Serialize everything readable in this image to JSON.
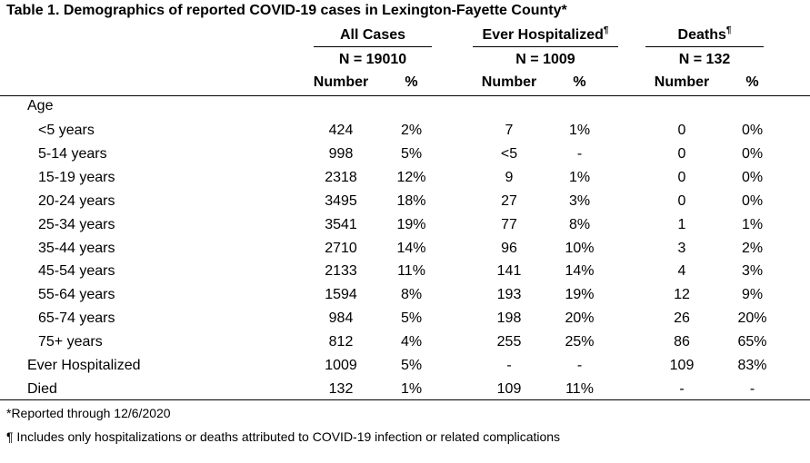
{
  "title": "Table 1. Demographics of reported COVID-19 cases in Lexington-Fayette County*",
  "groups": [
    {
      "label": "All Cases",
      "mark": "",
      "n": "N = 19010"
    },
    {
      "label": "Ever Hospitalized",
      "mark": "¶",
      "n": "N = 1009"
    },
    {
      "label": "Deaths",
      "mark": "¶",
      "n": "N = 132"
    }
  ],
  "col_headers": {
    "number": "Number",
    "percent": "%"
  },
  "section_label": "Age",
  "age_rows": [
    {
      "label": "<5 years",
      "all_n": "424",
      "all_p": "2%",
      "hosp_n": "7",
      "hosp_p": "1%",
      "death_n": "0",
      "death_p": "0%"
    },
    {
      "label": "5-14 years",
      "all_n": "998",
      "all_p": "5%",
      "hosp_n": "<5",
      "hosp_p": "-",
      "death_n": "0",
      "death_p": "0%"
    },
    {
      "label": "15-19 years",
      "all_n": "2318",
      "all_p": "12%",
      "hosp_n": "9",
      "hosp_p": "1%",
      "death_n": "0",
      "death_p": "0%"
    },
    {
      "label": "20-24 years",
      "all_n": "3495",
      "all_p": "18%",
      "hosp_n": "27",
      "hosp_p": "3%",
      "death_n": "0",
      "death_p": "0%"
    },
    {
      "label": "25-34 years",
      "all_n": "3541",
      "all_p": "19%",
      "hosp_n": "77",
      "hosp_p": "8%",
      "death_n": "1",
      "death_p": "1%"
    },
    {
      "label": "35-44 years",
      "all_n": "2710",
      "all_p": "14%",
      "hosp_n": "96",
      "hosp_p": "10%",
      "death_n": "3",
      "death_p": "2%"
    },
    {
      "label": "45-54 years",
      "all_n": "2133",
      "all_p": "11%",
      "hosp_n": "141",
      "hosp_p": "14%",
      "death_n": "4",
      "death_p": "3%"
    },
    {
      "label": "55-64 years",
      "all_n": "1594",
      "all_p": "8%",
      "hosp_n": "193",
      "hosp_p": "19%",
      "death_n": "12",
      "death_p": "9%"
    },
    {
      "label": "65-74 years",
      "all_n": "984",
      "all_p": "5%",
      "hosp_n": "198",
      "hosp_p": "20%",
      "death_n": "26",
      "death_p": "20%"
    },
    {
      "label": "75+ years",
      "all_n": "812",
      "all_p": "4%",
      "hosp_n": "255",
      "hosp_p": "25%",
      "death_n": "86",
      "death_p": "65%"
    }
  ],
  "summary_rows": [
    {
      "label": "Ever Hospitalized",
      "all_n": "1009",
      "all_p": "5%",
      "hosp_n": "-",
      "hosp_p": "-",
      "death_n": "109",
      "death_p": "83%"
    },
    {
      "label": "Died",
      "all_n": "132",
      "all_p": "1%",
      "hosp_n": "109",
      "hosp_p": "11%",
      "death_n": "-",
      "death_p": "-"
    }
  ],
  "footnotes": [
    "*Reported through 12/6/2020",
    "¶ Includes only hospitalizations or deaths attributed to COVID-19 infection or related complications"
  ]
}
